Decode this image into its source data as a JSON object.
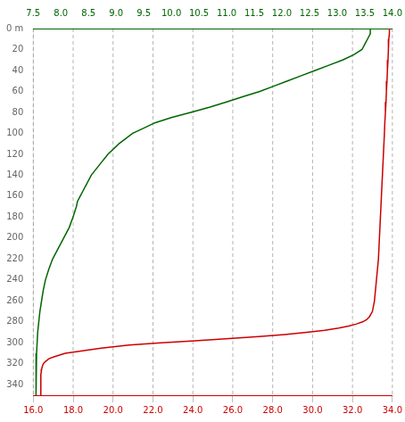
{
  "chart_data": {
    "type": "line",
    "xlim": [
      16.0,
      34.0
    ],
    "xticks": [
      {
        "value": 16.0,
        "label": "16.0"
      },
      {
        "value": 18.0,
        "label": "18.0"
      },
      {
        "value": 20.0,
        "label": "20.0"
      },
      {
        "value": 22.0,
        "label": "22.0"
      },
      {
        "value": 24.0,
        "label": "24.0"
      },
      {
        "value": 26.0,
        "label": "26.0"
      },
      {
        "value": 28.0,
        "label": "28.0"
      },
      {
        "value": 30.0,
        "label": "30.0"
      },
      {
        "value": 32.0,
        "label": "32.0"
      },
      {
        "value": 34.0,
        "label": "34.0"
      }
    ],
    "x2lim": [
      7.5,
      14.0
    ],
    "x2ticks": [
      7.5,
      {
        "value": 8.0,
        "label": "8.0"
      },
      8.5,
      {
        "value": 9.0,
        "label": "9.0"
      },
      9.5,
      {
        "value": 10.0,
        "label": "10.0"
      },
      10.5,
      {
        "value": 11.0,
        "label": "11.0"
      },
      11.5,
      {
        "value": 12.0,
        "label": "12.0"
      },
      12.5,
      {
        "value": 13.0,
        "label": "13.0"
      },
      13.5,
      {
        "value": 14.0,
        "label": "14.0"
      }
    ],
    "ylim": [
      350,
      0
    ],
    "yticks": [
      {
        "value": 0,
        "label": "0 m"
      },
      20,
      40,
      60,
      80,
      100,
      120,
      140,
      160,
      180,
      200,
      220,
      240,
      260,
      280,
      300,
      320,
      340
    ],
    "grid": "x",
    "series": [
      {
        "color": "#cc0000",
        "axis": "x",
        "x": [
          33.85,
          33.85,
          33.82,
          33.8,
          33.78,
          33.75,
          33.73,
          33.7,
          33.68,
          33.65,
          33.62,
          33.6,
          33.55,
          33.5,
          33.45,
          33.4,
          33.35,
          33.3,
          33.2,
          33.1,
          33.0,
          32.85,
          32.7,
          32.5,
          32.2,
          31.8,
          31.3,
          30.6,
          29.7,
          28.6,
          27.3,
          25.8,
          24.1,
          22.4,
          20.8,
          19.4,
          18.3,
          17.6,
          17.1,
          16.8,
          16.6,
          16.5,
          16.45,
          16.42,
          16.4,
          16.38,
          16.38,
          16.38,
          16.38,
          16.38,
          16.38,
          16.38,
          16.38,
          16.38
        ],
        "values": [
          0,
          5,
          10,
          20,
          30,
          40,
          50,
          60,
          70,
          80,
          90,
          100,
          120,
          140,
          160,
          180,
          200,
          220,
          240,
          260,
          270,
          275,
          278,
          280,
          282,
          284,
          286,
          288,
          290,
          292,
          294,
          296,
          298,
          300,
          302,
          305,
          308,
          310,
          313,
          315,
          318,
          320,
          323,
          325,
          328,
          330,
          333,
          335,
          338,
          340,
          343,
          345,
          348,
          350
        ]
      },
      {
        "color": "#006600",
        "axis": "x2",
        "x": [
          13.6,
          13.6,
          13.55,
          13.5,
          13.45,
          13.3,
          13.1,
          12.85,
          12.6,
          12.35,
          12.1,
          11.85,
          11.6,
          11.3,
          11.0,
          10.7,
          10.35,
          10.0,
          9.7,
          9.5,
          9.3,
          9.05,
          8.85,
          8.7,
          8.55,
          8.45,
          8.4,
          8.35,
          8.3,
          8.28,
          8.25,
          8.22,
          8.15,
          8.05,
          7.95,
          7.85,
          7.78,
          7.72,
          7.68,
          7.65,
          7.62,
          7.6,
          7.58,
          7.57,
          7.56,
          7.55,
          7.55,
          7.55,
          7.55
        ],
        "values": [
          0,
          5,
          10,
          15,
          20,
          25,
          30,
          35,
          40,
          45,
          50,
          55,
          60,
          65,
          70,
          75,
          80,
          85,
          90,
          95,
          100,
          110,
          120,
          130,
          140,
          150,
          155,
          160,
          165,
          170,
          175,
          180,
          190,
          200,
          210,
          220,
          230,
          240,
          250,
          260,
          270,
          280,
          290,
          300,
          310,
          320,
          330,
          340,
          350
        ]
      }
    ]
  }
}
